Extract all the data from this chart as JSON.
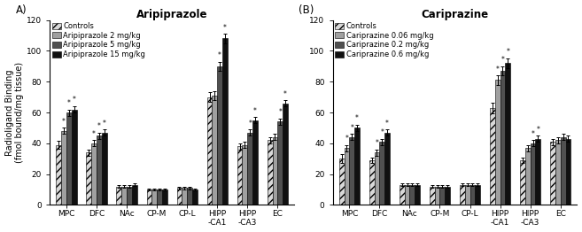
{
  "title_A": "Aripiprazole",
  "title_B": "Cariprazine",
  "label_A": "A)",
  "label_B": "(B)",
  "ylabel": "Radioligand Binding\n(fmol bound/mg tissue)",
  "categories": [
    "MPC",
    "DFC",
    "NAc",
    "CP-M",
    "CP-L",
    "HIPP\n-CA1",
    "HIPP\n-CA3",
    "EC"
  ],
  "legend_A": [
    "Controls",
    "Aripiprazole 2 mg/kg",
    "Aripiprazole 5 mg/kg",
    "Aripiprazole 15 mg/kg"
  ],
  "legend_B": [
    "Controls",
    "Cariprazine 0.06 mg/kg",
    "Cariprazine 0.2 mg/kg",
    "Cariprazine 0.6 mg/kg"
  ],
  "colors": [
    "#d8d8d8",
    "#a0a0a0",
    "#505050",
    "#101010"
  ],
  "ylim": [
    0,
    120
  ],
  "yticks": [
    0,
    20,
    40,
    60,
    80,
    100,
    120
  ],
  "data_A": [
    [
      39,
      34,
      12,
      10,
      11,
      70,
      38,
      42
    ],
    [
      48,
      40,
      12,
      10,
      11,
      71,
      39,
      44
    ],
    [
      60,
      45,
      12,
      10,
      11,
      90,
      47,
      54
    ],
    [
      62,
      47,
      13,
      10,
      10,
      108,
      55,
      66
    ]
  ],
  "err_A": [
    [
      2.5,
      2.0,
      0.8,
      0.8,
      0.8,
      3.0,
      2.0,
      2.0
    ],
    [
      2.0,
      2.0,
      0.8,
      0.8,
      0.8,
      3.0,
      2.0,
      2.0
    ],
    [
      2.0,
      2.0,
      0.8,
      0.8,
      0.8,
      3.0,
      2.0,
      2.0
    ],
    [
      2.0,
      2.0,
      0.8,
      0.8,
      0.8,
      3.0,
      2.0,
      2.0
    ]
  ],
  "sig_A": [
    [
      false,
      false,
      false,
      false,
      false,
      false,
      false,
      false
    ],
    [
      true,
      true,
      false,
      false,
      false,
      false,
      false,
      false
    ],
    [
      true,
      true,
      false,
      false,
      false,
      true,
      true,
      true
    ],
    [
      true,
      true,
      false,
      false,
      false,
      true,
      true,
      true
    ]
  ],
  "data_B": [
    [
      30,
      29,
      13,
      12,
      13,
      63,
      29,
      41
    ],
    [
      37,
      34,
      13,
      12,
      13,
      81,
      37,
      42
    ],
    [
      44,
      41,
      13,
      12,
      13,
      87,
      40,
      44
    ],
    [
      50,
      47,
      13,
      12,
      13,
      92,
      43,
      43
    ]
  ],
  "err_B": [
    [
      3.0,
      2.0,
      0.8,
      0.8,
      0.8,
      3.5,
      2.0,
      2.0
    ],
    [
      2.0,
      2.0,
      0.8,
      0.8,
      0.8,
      3.0,
      2.0,
      2.0
    ],
    [
      2.0,
      2.0,
      0.8,
      0.8,
      0.8,
      3.0,
      2.0,
      2.0
    ],
    [
      2.0,
      2.0,
      0.8,
      0.8,
      0.8,
      3.0,
      2.0,
      2.0
    ]
  ],
  "sig_B": [
    [
      false,
      false,
      false,
      false,
      false,
      false,
      false,
      false
    ],
    [
      true,
      true,
      false,
      false,
      false,
      true,
      false,
      false
    ],
    [
      true,
      true,
      false,
      false,
      false,
      true,
      true,
      false
    ],
    [
      true,
      true,
      false,
      false,
      false,
      true,
      true,
      false
    ]
  ],
  "bar_width": 0.17,
  "fontsize_title": 8.5,
  "fontsize_tick": 6.5,
  "fontsize_legend": 6.0,
  "fontsize_ylabel": 7.0,
  "background_color": "#ffffff"
}
